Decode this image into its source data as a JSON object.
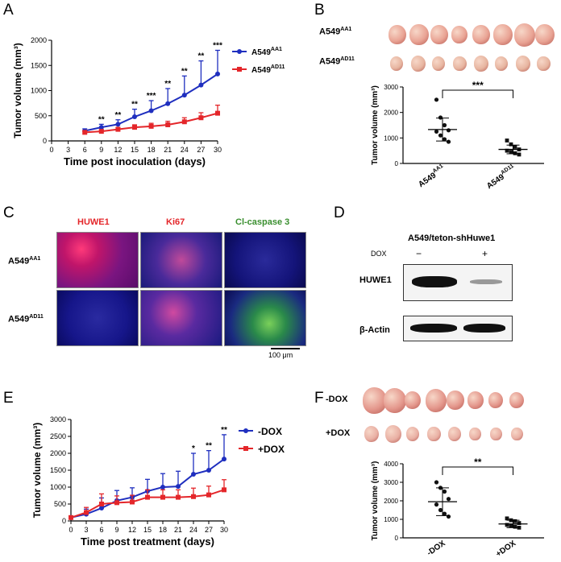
{
  "panels": {
    "A": {
      "letter": "A",
      "chart_data": {
        "type": "line",
        "xlabel": "Time post inoculation (days)",
        "ylabel": "Tumor volume (mm³)",
        "x": [
          6,
          9,
          12,
          15,
          18,
          21,
          24,
          27,
          30
        ],
        "xticks": [
          0,
          3,
          6,
          9,
          12,
          15,
          18,
          21,
          24,
          27,
          30
        ],
        "xlim": [
          0,
          30
        ],
        "ylim": [
          0,
          2000
        ],
        "yticks": [
          0,
          500,
          1000,
          1500,
          2000
        ],
        "series": [
          {
            "name": "A549",
            "sup": "AA1",
            "color": "#1f2fbf",
            "marker": "circle",
            "values": [
              200,
              270,
              330,
              480,
              600,
              740,
              910,
              1110,
              1330
            ],
            "err": [
              40,
              60,
              90,
              150,
              200,
              300,
              380,
              480,
              470
            ]
          },
          {
            "name": "A549",
            "sup": "AD11",
            "color": "#e4262a",
            "marker": "square",
            "values": [
              170,
              190,
              230,
              270,
              290,
              320,
              380,
              460,
              550
            ],
            "err": [
              20,
              30,
              40,
              50,
              60,
              70,
              80,
              100,
              160
            ]
          }
        ],
        "annotations": [
          {
            "x": 9,
            "label": "**"
          },
          {
            "x": 12,
            "label": "**"
          },
          {
            "x": 15,
            "label": "**"
          },
          {
            "x": 18,
            "label": "***"
          },
          {
            "x": 21,
            "label": "**"
          },
          {
            "x": 24,
            "label": "**"
          },
          {
            "x": 27,
            "label": "**"
          },
          {
            "x": 30,
            "label": "***"
          }
        ]
      }
    },
    "B": {
      "letter": "B",
      "row_labels": [
        {
          "name": "A549",
          "sup": "AA1"
        },
        {
          "name": "A549",
          "sup": "AD11"
        }
      ],
      "chart_data": {
        "type": "scatter",
        "ylabel": "Tumor volume (mm³)",
        "ylim": [
          0,
          3000
        ],
        "yticks": [
          0,
          1000,
          2000,
          3000
        ],
        "categories": [
          {
            "name": "A549",
            "sup": "AA1"
          },
          {
            "name": "A549",
            "sup": "AD11"
          }
        ],
        "points": [
          [
            2500,
            1800,
            1500,
            1300,
            1250,
            1100,
            950,
            850
          ],
          [
            900,
            750,
            650,
            550,
            500,
            450,
            400,
            350
          ]
        ],
        "mean": [
          1330,
          550
        ],
        "sd": [
          450,
          170
        ],
        "significance": "***"
      }
    },
    "C": {
      "letter": "C",
      "columns": [
        {
          "label": "HUWE1",
          "color": "#e4262a"
        },
        {
          "label": "Ki67",
          "color": "#e4262a"
        },
        {
          "label": "Cl-caspase 3",
          "color": "#3a8f2f"
        }
      ],
      "rows": [
        {
          "name": "A549",
          "sup": "AA1"
        },
        {
          "name": "A549",
          "sup": "AD11"
        }
      ],
      "scale_bar": "100 μm"
    },
    "D": {
      "letter": "D",
      "title": "A549/teton-shHuwe1",
      "dox_label": "DOX",
      "lanes": [
        "−",
        "+"
      ],
      "rows": [
        "HUWE1",
        "β-Actin"
      ]
    },
    "E": {
      "letter": "E",
      "chart_data": {
        "type": "line",
        "xlabel": "Time post treatment (days)",
        "ylabel": "Tumor volume (mm³)",
        "x": [
          0,
          3,
          6,
          9,
          12,
          15,
          18,
          21,
          24,
          27,
          30
        ],
        "xticks": [
          0,
          3,
          6,
          9,
          12,
          15,
          18,
          21,
          24,
          27,
          30
        ],
        "xlim": [
          0,
          30
        ],
        "ylim": [
          0,
          3000
        ],
        "yticks": [
          0,
          500,
          1000,
          1500,
          2000,
          2500,
          3000
        ],
        "series": [
          {
            "name": "-DOX",
            "color": "#1f2fbf",
            "marker": "circle",
            "values": [
              100,
              200,
              380,
              600,
              700,
              880,
              1000,
              1020,
              1380,
              1500,
              1830
            ],
            "err": [
              40,
              150,
              300,
              300,
              280,
              350,
              400,
              450,
              620,
              580,
              720
            ]
          },
          {
            "name": "+DOX",
            "color": "#e4262a",
            "marker": "square",
            "values": [
              100,
              250,
              500,
              540,
              560,
              700,
              700,
              700,
              720,
              770,
              920
            ],
            "err": [
              50,
              150,
              300,
              200,
              200,
              220,
              220,
              220,
              250,
              260,
              300
            ]
          }
        ],
        "annotations": [
          {
            "x": 24,
            "label": "*"
          },
          {
            "x": 27,
            "label": "**"
          },
          {
            "x": 30,
            "label": "**"
          }
        ]
      }
    },
    "F": {
      "letter": "F",
      "row_labels": [
        "-DOX",
        "+DOX"
      ],
      "chart_data": {
        "type": "scatter",
        "ylabel": "Tumor volume (mm³)",
        "ylim": [
          0,
          4000
        ],
        "yticks": [
          0,
          1000,
          2000,
          3000,
          4000
        ],
        "categories": [
          "-DOX",
          "+DOX"
        ],
        "points": [
          [
            3000,
            2700,
            2500,
            2100,
            1800,
            1500,
            1300,
            1150
          ],
          [
            1050,
            950,
            900,
            800,
            700,
            650,
            600,
            550
          ]
        ],
        "mean": [
          1950,
          750
        ],
        "sd": [
          750,
          200
        ],
        "significance": "**"
      }
    }
  }
}
